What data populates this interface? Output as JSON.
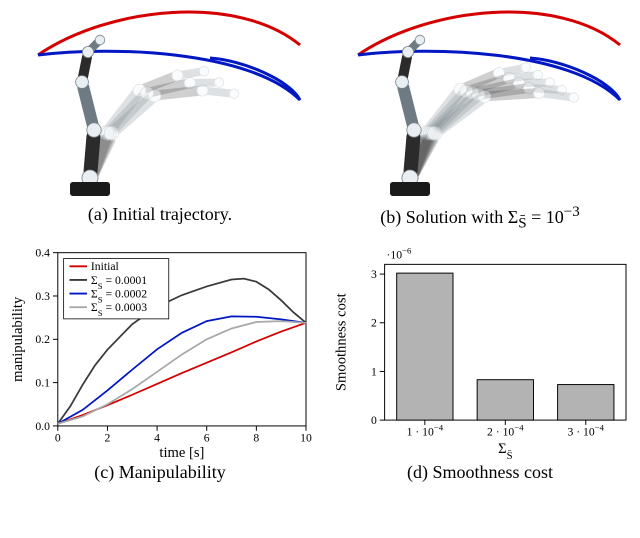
{
  "figure": {
    "panels": {
      "a": {
        "caption": "(a) Initial trajectory."
      },
      "b": {
        "caption_prefix": "(b) Solution with ",
        "sigma_symbol": "Σ",
        "sigma_sub": "S̄",
        "sigma_eq": " = 10",
        "sigma_exp": "−3"
      },
      "c": {
        "caption": "(c) Manipulability"
      },
      "d": {
        "caption": "(d) Smoothness cost"
      }
    },
    "trajectory_colors": {
      "initial": "#d40000",
      "solution": "#0017c3"
    },
    "robot": {
      "colors": {
        "base": "#1a1a1a",
        "link_dark": "#2b2b2b",
        "link_light": "#6e7b82",
        "joint": "#e8eef2",
        "joint_stroke": "#7a868c"
      },
      "ghost_opacity": 0.22,
      "panel_a_ghosts": 3,
      "panel_b_ghosts": 5
    },
    "manipulability_chart": {
      "type": "line",
      "xlabel": "time [s]",
      "ylabel": "manipulability",
      "xlim": [
        0,
        10
      ],
      "xtick_step": 2,
      "ylim": [
        0,
        0.4
      ],
      "ytick_step": 0.1,
      "background_color": "#ffffff",
      "axis_color": "#000000",
      "line_width": 1.8,
      "legend": {
        "position": "top-left-inside",
        "items": [
          {
            "label": "Initial",
            "color": "#d40000"
          },
          {
            "label_prefix": "Σ",
            "label_sub": "S",
            "label_suffix": " = 0.0001",
            "color": "#3a3a3a"
          },
          {
            "label_prefix": "Σ",
            "label_sub": "S",
            "label_suffix": " = 0.0002",
            "color": "#0017c3"
          },
          {
            "label_prefix": "Σ",
            "label_sub": "S",
            "label_suffix": " = 0.0003",
            "color": "#a8a8a8"
          }
        ]
      },
      "series": [
        {
          "name": "Initial",
          "color": "#d40000",
          "x": [
            0,
            1,
            2,
            3,
            4,
            5,
            6,
            7,
            8,
            9,
            10
          ],
          "y": [
            0.005,
            0.025,
            0.048,
            0.072,
            0.097,
            0.122,
            0.146,
            0.17,
            0.195,
            0.218,
            0.238
          ]
        },
        {
          "name": "Sigma0p0001",
          "color": "#3a3a3a",
          "x": [
            0,
            0.5,
            1,
            1.5,
            2,
            3,
            4,
            5,
            6,
            7,
            7.5,
            8,
            8.5,
            9,
            9.5,
            10
          ],
          "y": [
            0.005,
            0.045,
            0.095,
            0.14,
            0.176,
            0.235,
            0.275,
            0.302,
            0.322,
            0.338,
            0.34,
            0.333,
            0.315,
            0.29,
            0.262,
            0.238
          ]
        },
        {
          "name": "Sigma0p0002",
          "color": "#0017c3",
          "x": [
            0,
            1,
            2,
            3,
            4,
            5,
            6,
            7,
            8,
            9,
            10
          ],
          "y": [
            0.005,
            0.037,
            0.082,
            0.13,
            0.177,
            0.215,
            0.242,
            0.253,
            0.252,
            0.246,
            0.238
          ]
        },
        {
          "name": "Sigma0p0003",
          "color": "#a8a8a8",
          "x": [
            0,
            1,
            2,
            3,
            4,
            5,
            6,
            7,
            8,
            9,
            10
          ],
          "y": [
            0.005,
            0.022,
            0.05,
            0.085,
            0.125,
            0.165,
            0.2,
            0.225,
            0.24,
            0.242,
            0.238
          ]
        }
      ]
    },
    "smoothness_chart": {
      "type": "bar",
      "xlabel_symbol": "Σ",
      "xlabel_sub": "S̄",
      "ylabel": "Smoothness cost",
      "y_exponent_label": "·10",
      "y_exponent": "−6",
      "ylim": [
        0,
        3.2
      ],
      "yticks": [
        0,
        1,
        2,
        3
      ],
      "background_color": "#ffffff",
      "axis_color": "#000000",
      "bar_color": "#b3b3b3",
      "bar_border_color": "#000000",
      "bar_width": 0.7,
      "categories": [
        {
          "label_base": "1 · 10",
          "label_exp": "−4",
          "value": 3.02
        },
        {
          "label_base": "2 · 10",
          "label_exp": "−4",
          "value": 0.83
        },
        {
          "label_base": "3 · 10",
          "label_exp": "−4",
          "value": 0.73
        }
      ]
    }
  }
}
